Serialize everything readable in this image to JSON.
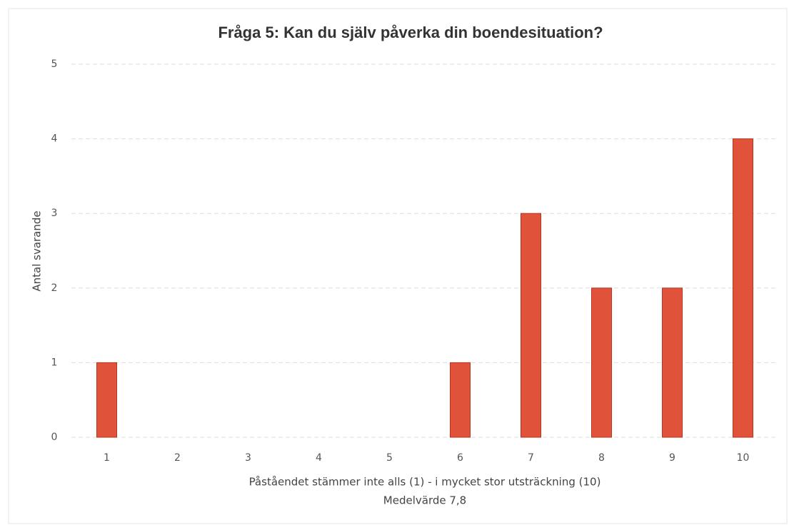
{
  "chart_data": {
    "type": "bar",
    "title": "Fråga 5: Kan du själv påverka din boendesituation?",
    "categories": [
      "1",
      "2",
      "3",
      "4",
      "5",
      "6",
      "7",
      "8",
      "9",
      "10"
    ],
    "values": [
      1,
      0,
      0,
      0,
      0,
      1,
      3,
      2,
      2,
      4
    ],
    "color": "#e0533a",
    "ylim": [
      0,
      5
    ],
    "yticks": [
      0,
      1,
      2,
      3,
      4,
      5
    ],
    "grid": true,
    "xlabel": "Påståendet stämmer inte alls (1) - i mycket stor utsträckning (10)",
    "annotation": "Medelvärde 7,8",
    "ylabel": "Antal svarande"
  }
}
